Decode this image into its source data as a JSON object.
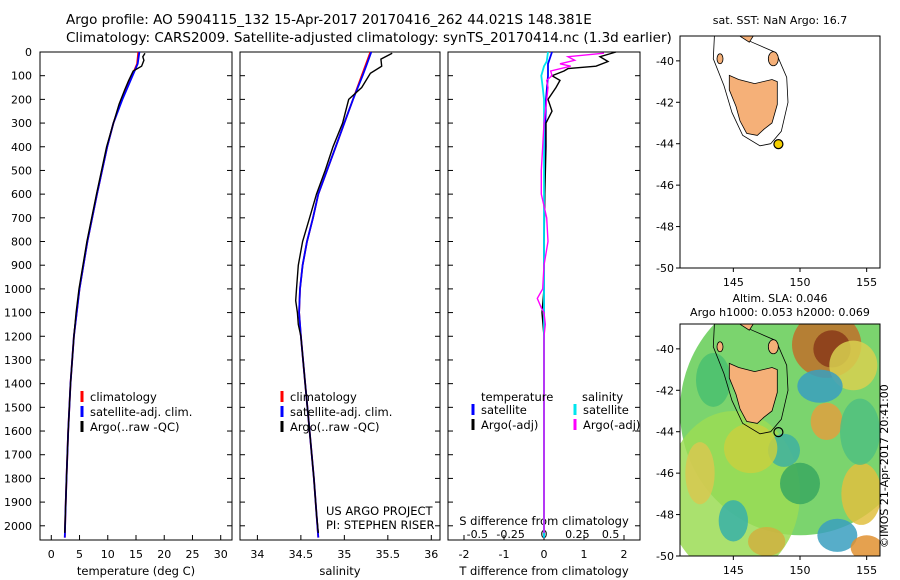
{
  "header": {
    "line1": "Argo profile: AO 5904115_132 15-Apr-2017 20170416_262 44.021S 148.381E",
    "line2": "Climatology: CARS2009. Satellite-adjusted climatology: synTS_20170414.nc (1.3d earlier)"
  },
  "colors": {
    "clim": "#ff0000",
    "sat": "#0000ff",
    "argo": "#000000",
    "sat_s": "#00e5ee",
    "argo_s": "#ff00ff",
    "land": "#f5b078",
    "marker": "#f5d000"
  },
  "chart_data": [
    {
      "type": "line",
      "id": "temp",
      "xlabel": "temperature (deg C)",
      "ylabel": "",
      "xlim": [
        -2,
        32
      ],
      "ylim": [
        2060,
        0
      ],
      "xticks": [
        0,
        5,
        10,
        15,
        20,
        25,
        30
      ],
      "yticks": [
        0,
        100,
        200,
        300,
        400,
        500,
        600,
        700,
        800,
        900,
        1000,
        1100,
        1200,
        1300,
        1400,
        1500,
        1600,
        1700,
        1800,
        1900,
        2000
      ],
      "legend": [
        "climatology",
        "satellite-adj. clim.",
        "Argo(..raw -QC)"
      ],
      "series": [
        {
          "name": "climatology",
          "depth": [
            0,
            50,
            100,
            200,
            300,
            400,
            600,
            800,
            1000,
            1200,
            1400,
            1600,
            1800,
            1950,
            2050
          ],
          "values": [
            15.4,
            15.2,
            14.3,
            12.5,
            11.0,
            9.9,
            8.1,
            6.4,
            5.0,
            4.0,
            3.4,
            3.0,
            2.7,
            2.5,
            2.4
          ]
        },
        {
          "name": "satellite-adj. clim.",
          "depth": [
            0,
            50,
            100,
            200,
            300,
            400,
            600,
            800,
            1000,
            1200,
            1400,
            1600,
            1800,
            1950,
            2050
          ],
          "values": [
            15.6,
            15.3,
            14.4,
            12.6,
            11.0,
            9.9,
            8.1,
            6.4,
            5.0,
            4.0,
            3.4,
            3.0,
            2.7,
            2.5,
            2.4
          ]
        },
        {
          "name": "Argo(..raw -QC)",
          "depth": [
            5,
            20,
            35,
            60,
            80,
            120,
            160,
            220,
            300,
            400,
            600,
            800,
            1000,
            1100,
            1200,
            1400,
            1600,
            1800,
            1950,
            2030
          ],
          "values": [
            16.6,
            16.2,
            16.4,
            16.0,
            14.5,
            13.7,
            13.0,
            12.0,
            11.0,
            9.8,
            8.0,
            6.3,
            4.9,
            4.4,
            4.0,
            3.4,
            3.0,
            2.7,
            2.5,
            2.4
          ]
        }
      ]
    },
    {
      "type": "line",
      "id": "sal",
      "xlabel": "salinity",
      "ylabel": "",
      "xlim": [
        33.8,
        36.1
      ],
      "ylim": [
        2060,
        0
      ],
      "xticks": [
        34,
        34.5,
        35,
        35.5,
        36
      ],
      "yticks": [
        0,
        100,
        200,
        300,
        400,
        500,
        600,
        700,
        800,
        900,
        1000,
        1100,
        1200,
        1300,
        1400,
        1500,
        1600,
        1700,
        1800,
        1900,
        2000
      ],
      "legend": [
        "climatology",
        "satellite-adj. clim.",
        "Argo(..raw -QC)"
      ],
      "annotation": [
        "US ARGO PROJECT",
        "PI: STEPHEN RISER"
      ],
      "series": [
        {
          "name": "climatology",
          "depth": [
            0,
            50,
            100,
            200,
            300,
            400,
            500,
            600,
            700,
            800,
            900,
            1000,
            1100,
            1200,
            1400,
            1600,
            1800,
            1950,
            2050
          ],
          "values": [
            35.3,
            35.25,
            35.2,
            35.1,
            35.0,
            34.9,
            34.8,
            34.7,
            34.64,
            34.57,
            34.52,
            34.49,
            34.48,
            34.5,
            34.55,
            34.6,
            34.65,
            34.68,
            34.7
          ]
        },
        {
          "name": "satellite-adj. clim.",
          "depth": [
            0,
            50,
            100,
            200,
            300,
            400,
            500,
            600,
            700,
            800,
            900,
            1000,
            1100,
            1200,
            1400,
            1600,
            1800,
            1950,
            2050
          ],
          "values": [
            35.31,
            35.26,
            35.21,
            35.1,
            35.0,
            34.9,
            34.8,
            34.7,
            34.64,
            34.57,
            34.52,
            34.49,
            34.48,
            34.5,
            34.55,
            34.6,
            34.65,
            34.68,
            34.7
          ]
        },
        {
          "name": "Argo(..raw -QC)",
          "depth": [
            5,
            30,
            60,
            90,
            150,
            200,
            300,
            400,
            500,
            600,
            700,
            800,
            900,
            1000,
            1050,
            1100,
            1150,
            1200,
            1400,
            1600,
            1800,
            1950,
            2030
          ],
          "values": [
            35.55,
            35.42,
            35.43,
            35.3,
            35.2,
            35.05,
            34.98,
            34.87,
            34.78,
            34.68,
            34.6,
            34.52,
            34.47,
            34.45,
            34.44,
            34.46,
            34.47,
            34.5,
            34.55,
            34.6,
            34.65,
            34.68,
            34.7
          ]
        }
      ]
    },
    {
      "type": "line",
      "id": "diff",
      "xlabel": "T difference from climatology",
      "xlabel_top": "S difference from climatology",
      "xlim": [
        -2.4,
        2.4
      ],
      "ylim": [
        2060,
        0
      ],
      "xticks": [
        -2,
        -1,
        0,
        1,
        2
      ],
      "xticks_s": [
        -0.5,
        -0.25,
        0,
        0.25,
        0.5
      ],
      "xticks_s_labels": [
        "-0.5",
        "-0.25",
        "0",
        "0.25",
        "0.5"
      ],
      "yticks": [
        0,
        100,
        200,
        300,
        400,
        500,
        600,
        700,
        800,
        900,
        1000,
        1100,
        1200,
        1300,
        1400,
        1500,
        1600,
        1700,
        1800,
        1900,
        2000
      ],
      "legend_temp_title": "temperature",
      "legend_sal_title": "salinity",
      "legend": [
        "satellite",
        "Argo(-adj)",
        "satellite",
        "Argo(-adj)"
      ],
      "series": [
        {
          "name": "temperature satellite",
          "depth": [
            0,
            50,
            100,
            200,
            400,
            800,
            1200,
            1600,
            2050
          ],
          "values": [
            0.2,
            0.1,
            0.1,
            0.05,
            0.02,
            0.0,
            0.0,
            0.0,
            0.0
          ]
        },
        {
          "name": "temperature Argo(-adj)",
          "depth": [
            0,
            20,
            40,
            60,
            70,
            80,
            100,
            120,
            150,
            200,
            250,
            300,
            400,
            600,
            800,
            1000,
            1100,
            1200,
            1600,
            2030
          ],
          "values": [
            1.8,
            1.4,
            1.6,
            1.3,
            0.6,
            0.5,
            0.2,
            0.4,
            0.3,
            0.1,
            0.2,
            0.05,
            0.05,
            0.02,
            0.0,
            0.0,
            -0.05,
            0.0,
            0.0,
            0.0
          ]
        },
        {
          "name": "salinity satellite",
          "depth": [
            0,
            40,
            60,
            100,
            150,
            200,
            400,
            800,
            1200,
            1600,
            2050
          ],
          "values": [
            0.03,
            0.02,
            0.0,
            -0.02,
            -0.01,
            0.0,
            0.0,
            0.0,
            0.0,
            0.0,
            0.0
          ]
        },
        {
          "name": "salinity Argo(-adj)",
          "depth": [
            5,
            20,
            35,
            50,
            60,
            80,
            100,
            120,
            150,
            200,
            300,
            400,
            500,
            600,
            700,
            800,
            900,
            1000,
            1040,
            1080,
            1100,
            1150,
            1200,
            1400,
            1600,
            2030
          ],
          "values": [
            0.45,
            0.18,
            0.23,
            0.12,
            0.2,
            0.05,
            0.06,
            0.02,
            0.03,
            0.02,
            0.0,
            -0.01,
            -0.02,
            -0.02,
            0.02,
            0.03,
            0.0,
            -0.01,
            -0.05,
            -0.02,
            0.0,
            0.01,
            0.0,
            0.0,
            0.0,
            0.0
          ]
        }
      ]
    }
  ],
  "map_top": {
    "title": "sat. SST: NaN Argo: 16.7",
    "yticks": [
      -40,
      -42,
      -44,
      -46,
      -48,
      -50
    ],
    "xticks": [
      145,
      150,
      155
    ]
  },
  "map_bottom": {
    "title1": "Altim. SLA: 0.046",
    "title2": "Argo h1000: 0.053 h2000: 0.069",
    "yticks": [
      -40,
      -42,
      -44,
      -46,
      -48,
      -50
    ],
    "xticks": [
      145,
      150,
      155
    ]
  },
  "float_position": {
    "lon": 148.381,
    "lat": -44.021
  },
  "credit": "©IMOS 21-Apr-2017 20:41:00"
}
